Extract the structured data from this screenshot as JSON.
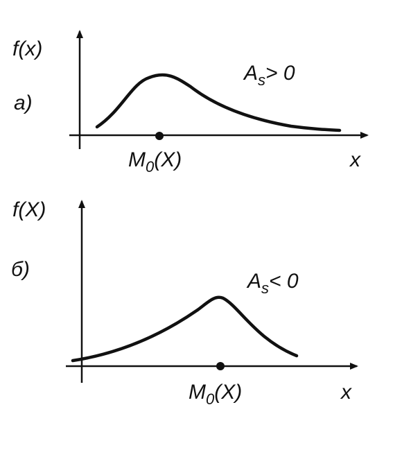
{
  "panels": [
    {
      "label": "a)",
      "y_axis": "f(x)",
      "x_axis": "x",
      "asymmetry": {
        "base": "A",
        "sub": "s",
        "rest": "> 0"
      },
      "mode": {
        "base": "M",
        "sub": "0",
        "rest": "(X)"
      }
    },
    {
      "label": "б)",
      "y_axis": "f(X)",
      "x_axis": "x",
      "asymmetry": {
        "base": "A",
        "sub": "s",
        "rest": "< 0"
      },
      "mode": {
        "base": "M",
        "sub": "0",
        "rest": "(X)"
      }
    }
  ]
}
